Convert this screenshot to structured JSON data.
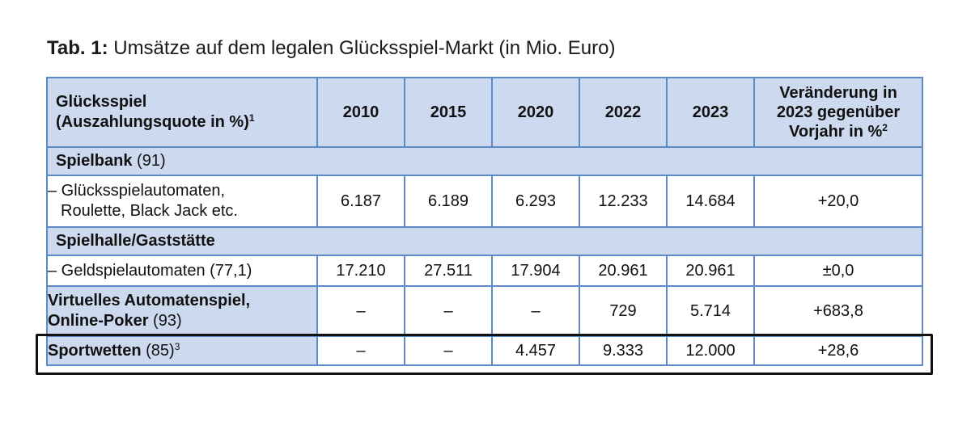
{
  "caption": {
    "label": "Tab. 1:",
    "text": "Umsätze auf dem legalen Glücksspiel-Markt (in Mio. Euro)"
  },
  "header": {
    "col1_line1": "Glücksspiel",
    "col1_line2": "(Auszahlungsquote in %)",
    "col1_sup": "1",
    "years": [
      "2010",
      "2015",
      "2020",
      "2022",
      "2023"
    ],
    "change_line1": "Veränderung in",
    "change_line2": "2023 gegenüber",
    "change_line3": "Vorjahr in %",
    "change_sup": "2"
  },
  "sections": {
    "spielbank": {
      "title": "Spielbank",
      "quote": "(91)"
    },
    "spielhalle": {
      "title": "Spielhalle/Gaststätte"
    }
  },
  "rows": {
    "gluecksspielautomaten": {
      "label_line1": "– Glücksspielautomaten,",
      "label_line2": "Roulette, Black Jack etc.",
      "values": [
        "6.187",
        "6.189",
        "6.293",
        "12.233",
        "14.684"
      ],
      "change": "+20,0"
    },
    "geldspielautomaten": {
      "label": "– Geldspielautomaten (77,1)",
      "values": [
        "17.210",
        "27.511",
        "17.904",
        "20.961",
        "20.961"
      ],
      "change": "±0,0"
    },
    "virtuelles": {
      "title_line1": "Virtuelles Automatenspiel,",
      "title_line2": "Online-Poker",
      "quote": "(93)",
      "values": [
        "–",
        "–",
        "–",
        "729",
        "5.714"
      ],
      "change": "+683,8"
    },
    "sportwetten": {
      "title": "Sportwetten",
      "quote": "(85)",
      "sup": "3",
      "values": [
        "–",
        "–",
        "4.457",
        "9.333",
        "12.000"
      ],
      "change": "+28,6"
    }
  },
  "colors": {
    "header_fill": "#cdd9ee",
    "grid_line": "#5b8bc6",
    "highlight_frame": "#111111"
  }
}
